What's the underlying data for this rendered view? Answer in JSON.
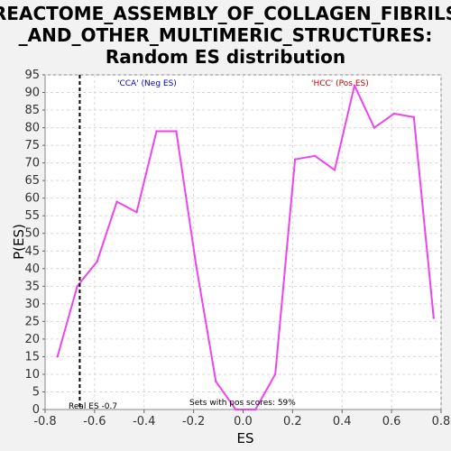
{
  "chart_data": {
    "type": "line",
    "title_lines": [
      "REACTOME_ASSEMBLY_OF_COLLAGEN_FIBRILS",
      "_AND_OTHER_MULTIMERIC_STRUCTURES:",
      "Random ES distribution"
    ],
    "xlabel": "ES",
    "ylabel": "P(ES)",
    "xlim": [
      -0.8,
      0.8
    ],
    "ylim": [
      0,
      95
    ],
    "x_ticks": [
      -0.8,
      -0.6,
      -0.4,
      -0.2,
      0.0,
      0.2,
      0.4,
      0.6,
      0.8
    ],
    "x_tick_labels": [
      "-0.8",
      "-0.6",
      "-0.4",
      "-0.2",
      "0.0",
      "0.2",
      "0.4",
      "0.6",
      "0.8"
    ],
    "y_ticks": [
      0,
      5,
      10,
      15,
      20,
      25,
      30,
      35,
      40,
      45,
      50,
      55,
      60,
      65,
      70,
      75,
      80,
      85,
      90,
      95
    ],
    "grid": true,
    "series": [
      {
        "color": "#ee44ee",
        "x": [
          -0.75,
          -0.67,
          -0.59,
          -0.51,
          -0.43,
          -0.35,
          -0.27,
          -0.19,
          -0.11,
          -0.03,
          0.05,
          0.13,
          0.21,
          0.29,
          0.37,
          0.45,
          0.53,
          0.61,
          0.69,
          0.77
        ],
        "y": [
          15,
          35,
          42,
          59,
          56,
          79,
          79,
          41,
          8,
          0,
          0,
          10,
          71,
          72,
          68,
          92,
          80,
          84,
          83,
          26
        ]
      }
    ],
    "real_es": {
      "x": -0.66,
      "label": "Real ES -0.7",
      "color": "#000000"
    },
    "annotations": {
      "neg_label": "'CCA' (Neg ES)",
      "neg_color": "#0000cc",
      "pos_label": "'HCC' (Pos ES)",
      "pos_color": "#cc0000",
      "footer": "Sets with pos scores: 59%"
    }
  }
}
